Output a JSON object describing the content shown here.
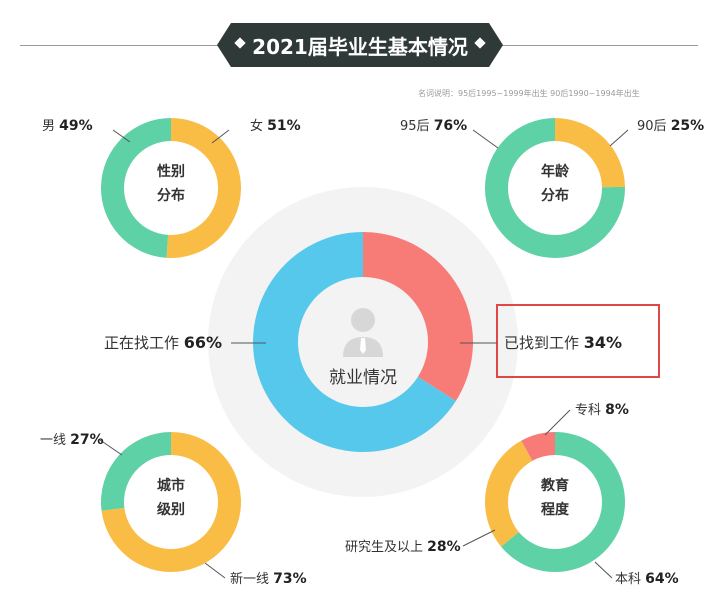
{
  "header": {
    "title": "2021届毕业生基本情况",
    "note": "名词说明：95后1995~1999年出生 90后1990~1994年出生"
  },
  "chart_data": [
    {
      "type": "pie",
      "center_label": [
        "性别",
        "分布"
      ],
      "slices": [
        {
          "label": "女",
          "value": 51,
          "pct_text": "51%",
          "color": "#f9bd45"
        },
        {
          "label": "男",
          "value": 49,
          "pct_text": "49%",
          "color": "#5ed1a6"
        }
      ]
    },
    {
      "type": "pie",
      "center_label": [
        "年龄",
        "分布"
      ],
      "slices": [
        {
          "label": "90后",
          "value": 25,
          "pct_text": "25%",
          "color": "#f9bd45"
        },
        {
          "label": "95后",
          "value": 76,
          "pct_text": "76%",
          "color": "#5ed1a6"
        }
      ]
    },
    {
      "type": "pie",
      "center_label": [
        "就业情况"
      ],
      "slices": [
        {
          "label": "已找到工作",
          "value": 34,
          "pct_text": "34%",
          "color": "#f77c78"
        },
        {
          "label": "正在找工作",
          "value": 66,
          "pct_text": "66%",
          "color": "#55c8ec"
        }
      ]
    },
    {
      "type": "pie",
      "center_label": [
        "城市",
        "级别"
      ],
      "slices": [
        {
          "label": "新一线",
          "value": 73,
          "pct_text": "73%",
          "color": "#f9bd45"
        },
        {
          "label": "一线",
          "value": 27,
          "pct_text": "27%",
          "color": "#5ed1a6"
        }
      ]
    },
    {
      "type": "pie",
      "center_label": [
        "教育",
        "程度"
      ],
      "slices": [
        {
          "label": "本科",
          "value": 64,
          "pct_text": "64%",
          "color": "#5ed1a6"
        },
        {
          "label": "研究生及以上",
          "value": 28,
          "pct_text": "28%",
          "color": "#f9bd45"
        },
        {
          "label": "专科",
          "value": 8,
          "pct_text": "8%",
          "color": "#f77c78"
        }
      ]
    }
  ]
}
